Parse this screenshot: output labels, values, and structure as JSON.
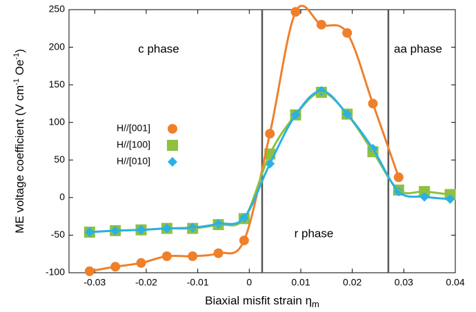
{
  "chart_data": {
    "type": "line",
    "x_label": [
      "Biaxial misfit strain η",
      "m"
    ],
    "y_label": [
      "ME voltage coefficient (V cm",
      "-1",
      " Oe",
      "-1",
      ")"
    ],
    "annotations": [
      "c phase",
      "r phase",
      "aa phase"
    ],
    "phase_boundaries": [
      0.0025,
      0.027
    ],
    "xlim": [
      -0.035,
      0.04
    ],
    "xticks": [
      -0.03,
      -0.02,
      -0.01,
      0,
      0.01,
      0.02,
      0.03,
      0.04
    ],
    "ylim": [
      -100,
      250
    ],
    "yticks": [
      -100,
      -50,
      0,
      50,
      100,
      150,
      200,
      250
    ],
    "series": [
      {
        "name": "H//[001]",
        "color": "#f07f2a",
        "marker": "circle",
        "x": [
          -0.031,
          -0.026,
          -0.021,
          -0.016,
          -0.011,
          -0.006,
          -0.001,
          0.004,
          0.009,
          0.014,
          0.019,
          0.024,
          0.029
        ],
        "values": [
          -98,
          -92,
          -87,
          -78,
          -78,
          -74,
          -57,
          85,
          247,
          230,
          219,
          125,
          27
        ]
      },
      {
        "name": "H//[100]",
        "color": "#8dc13f",
        "marker": "square",
        "x": [
          -0.031,
          -0.026,
          -0.021,
          -0.016,
          -0.011,
          -0.006,
          -0.001,
          0.004,
          0.009,
          0.014,
          0.019,
          0.024,
          0.029,
          0.034,
          0.039
        ],
        "values": [
          -46,
          -44,
          -43,
          -41,
          -41,
          -36,
          -28,
          58,
          110,
          140,
          111,
          61,
          10,
          8,
          4
        ]
      },
      {
        "name": "H//[010]",
        "color": "#2ab0e6",
        "marker": "diamond",
        "x": [
          -0.031,
          -0.026,
          -0.021,
          -0.016,
          -0.011,
          -0.006,
          -0.001,
          0.004,
          0.009,
          0.014,
          0.019,
          0.024,
          0.029,
          0.034,
          0.039
        ],
        "values": [
          -46,
          -44,
          -43,
          -41,
          -40,
          -35,
          -27,
          45,
          110,
          142,
          111,
          65,
          8,
          1,
          -2
        ]
      }
    ]
  }
}
